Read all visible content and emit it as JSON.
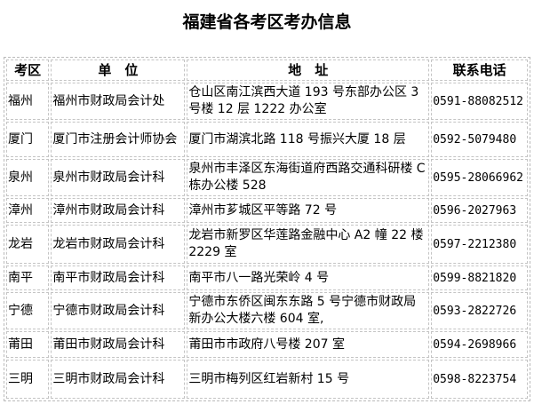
{
  "title": "福建省各考区考办信息",
  "headers": [
    "考区",
    "单　位",
    "地　址",
    "联系电话"
  ],
  "rows": [
    [
      "福州",
      "福州市财政局会计处",
      "仓山区南江滨西大道 193 号东部办公区 3 号楼 12 层 1222 办公室",
      "0591-88082512"
    ],
    [
      "厦门",
      "厦门市注册会计师协会",
      "厦门市湖滨北路 118 号振兴大厦 18 层",
      "0592-5079480"
    ],
    [
      "泉州",
      "泉州市财政局会计科",
      "泉州市丰泽区东海街道府西路交通科研楼 C 栋办公楼 528",
      "0595-28066962"
    ],
    [
      "漳州",
      "漳州市财政局会计科",
      "漳州市芗城区平等路 72 号",
      "0596-2027963"
    ],
    [
      "龙岩",
      "龙岩市财政局会计科",
      "龙岩市新罗区华莲路金融中心 A2 幢 22 楼 2229 室",
      "0597-2212380"
    ],
    [
      "南平",
      "南平市财政局会计科",
      "南平市八一路光荣岭 4 号",
      "0599-8821820"
    ],
    [
      "宁德",
      "宁德市财政局会计科",
      "宁德市东侨区闽东东路 5 号宁德市财政局新办公大楼六楼 604 室,",
      "0593-2822726"
    ],
    [
      "莆田",
      "莆田市财政局会计科",
      "莆田市市政府八号楼 207 室",
      "0594-2698966"
    ],
    [
      "三明",
      "三明市财政局会计科",
      "三明市梅列区红岩新村 15 号",
      "0598-8223754"
    ]
  ]
}
